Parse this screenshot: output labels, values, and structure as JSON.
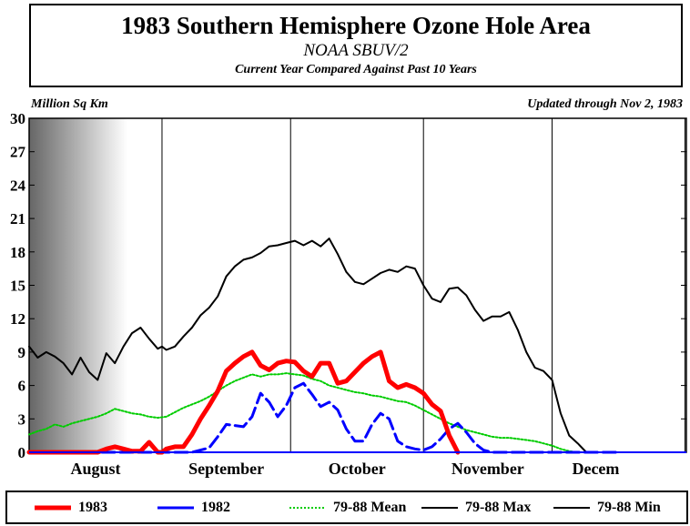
{
  "header": {
    "title": "1983 Southern Hemisphere Ozone Hole Area",
    "subtitle": "NOAA SBUV/2",
    "subtitle2": "Current Year Compared Against Past 10 Years",
    "unit": "Million Sq Km",
    "updated": "Updated through Nov 2, 1983"
  },
  "legend": [
    {
      "label": "1983",
      "color": "#ff0000",
      "style": "solid-thick"
    },
    {
      "label": "1982",
      "color": "#0000ff",
      "style": "dashed"
    },
    {
      "label": "79-88 Mean",
      "color": "#00cc00",
      "style": "dotted"
    },
    {
      "label": "79-88 Max",
      "color": "#000000",
      "style": "solid"
    },
    {
      "label": "79-88 Min",
      "color": "#000000",
      "style": "solid"
    }
  ],
  "chart_data": {
    "type": "line",
    "ylim": [
      0,
      30
    ],
    "yticks": [
      0,
      3,
      6,
      9,
      12,
      15,
      18,
      21,
      24,
      27,
      30
    ],
    "xlim": [
      0,
      138
    ],
    "month_labels": [
      "August",
      "September",
      "October",
      "November",
      "Decem"
    ],
    "grid_x": [
      31,
      61,
      92,
      122,
      153
    ],
    "series": [
      {
        "name": "79-88 Max",
        "color": "#000000",
        "width": 2,
        "x": [
          0,
          2,
          4,
          6,
          8,
          10,
          12,
          14,
          16,
          18,
          20,
          22,
          24,
          26,
          28,
          30,
          31,
          32,
          34,
          36,
          38,
          40,
          42,
          44,
          46,
          48,
          50,
          52,
          54,
          56,
          58,
          60,
          62,
          64,
          66,
          68,
          70,
          72,
          74,
          76,
          78,
          80,
          82,
          84,
          86,
          88,
          90,
          92,
          94,
          96,
          98,
          100,
          102,
          104,
          106,
          108,
          110,
          112,
          114,
          116,
          118,
          120,
          122,
          124,
          126,
          128,
          130,
          132,
          134,
          136,
          138
        ],
        "y": [
          9.5,
          8.5,
          9,
          8.6,
          8,
          7,
          8.5,
          7.2,
          6.5,
          8.9,
          8.0,
          9.5,
          10.7,
          11.2,
          10.2,
          9.3,
          9.5,
          9.2,
          9.5,
          10.4,
          11.2,
          12.3,
          13.0,
          14.0,
          15.8,
          16.7,
          17.3,
          17.5,
          17.9,
          18.5,
          18.6,
          18.8,
          19.0,
          18.6,
          19.0,
          18.5,
          19.2,
          17.8,
          16.2,
          15.3,
          15.1,
          15.6,
          16.1,
          16.4,
          16.2,
          16.7,
          16.5,
          15.0,
          13.8,
          13.5,
          14.7,
          14.8,
          14.1,
          12.8,
          11.8,
          12.2,
          12.2,
          12.6,
          11.0,
          9.0,
          7.6,
          7.3,
          6.5,
          3.5,
          1.5,
          0.8,
          0,
          0,
          0,
          0,
          0
        ]
      },
      {
        "name": "79-88 Mean",
        "color": "#00cc00",
        "width": 2,
        "dash": "2,2",
        "x": [
          0,
          2,
          4,
          6,
          8,
          10,
          12,
          14,
          16,
          18,
          20,
          22,
          24,
          26,
          28,
          30,
          32,
          34,
          36,
          38,
          40,
          42,
          44,
          46,
          48,
          50,
          52,
          54,
          56,
          58,
          60,
          62,
          64,
          66,
          68,
          70,
          72,
          74,
          76,
          78,
          80,
          82,
          84,
          86,
          88,
          90,
          92,
          94,
          96,
          98,
          100,
          102,
          104,
          106,
          108,
          110,
          112,
          114,
          116,
          118,
          120,
          122,
          124,
          126,
          128,
          130,
          132,
          134,
          136,
          138
        ],
        "y": [
          1.6,
          1.9,
          2.1,
          2.5,
          2.3,
          2.6,
          2.8,
          3.0,
          3.2,
          3.5,
          3.9,
          3.7,
          3.5,
          3.4,
          3.2,
          3.1,
          3.2,
          3.6,
          4.0,
          4.3,
          4.6,
          5.0,
          5.5,
          6.0,
          6.4,
          6.7,
          7.0,
          6.8,
          7.0,
          7.0,
          7.1,
          7.0,
          6.9,
          6.6,
          6.4,
          6.0,
          5.8,
          5.6,
          5.4,
          5.3,
          5.1,
          5.0,
          4.8,
          4.6,
          4.5,
          4.2,
          3.8,
          3.4,
          3.0,
          2.6,
          2.3,
          2.0,
          1.8,
          1.6,
          1.4,
          1.3,
          1.3,
          1.2,
          1.1,
          1.0,
          0.8,
          0.6,
          0.3,
          0.1,
          0,
          0,
          0,
          0,
          0,
          0
        ]
      },
      {
        "name": "1982",
        "color": "#0000ff",
        "width": 3,
        "dash": "14,6",
        "x": [
          0,
          20,
          26,
          28,
          32,
          34,
          36,
          38,
          40,
          42,
          44,
          46,
          48,
          50,
          52,
          54,
          56,
          58,
          60,
          62,
          64,
          66,
          68,
          70,
          72,
          74,
          76,
          78,
          80,
          82,
          84,
          86,
          88,
          90,
          92,
          94,
          96,
          98,
          100,
          102,
          104,
          106,
          108,
          110,
          112,
          114,
          116,
          118,
          120,
          122,
          124,
          126,
          128,
          130,
          132,
          134,
          136,
          138
        ],
        "y": [
          0,
          0,
          0,
          0,
          0,
          0,
          0,
          0,
          0.2,
          0.4,
          1.4,
          2.5,
          2.4,
          2.3,
          3.2,
          5.3,
          4.5,
          3.2,
          4.2,
          5.8,
          6.2,
          5.2,
          4.1,
          4.5,
          3.8,
          2.1,
          1.0,
          1.0,
          2.5,
          3.5,
          3.0,
          1.0,
          0.5,
          0.3,
          0.2,
          0.5,
          1.2,
          2.1,
          2.6,
          1.8,
          0.8,
          0.2,
          0,
          0,
          0,
          0,
          0,
          0,
          0,
          0,
          0,
          0,
          0,
          0,
          0,
          0,
          0,
          0
        ]
      },
      {
        "name": "1983",
        "color": "#ff0000",
        "width": 5,
        "x": [
          0,
          4,
          8,
          12,
          16,
          18,
          20,
          22,
          24,
          26,
          28,
          30,
          31,
          32,
          34,
          36,
          38,
          40,
          42,
          44,
          46,
          48,
          50,
          52,
          54,
          56,
          58,
          60,
          62,
          64,
          66,
          68,
          70,
          72,
          74,
          76,
          78,
          80,
          82,
          84,
          86,
          88,
          90,
          92,
          94,
          96,
          98,
          100
        ],
        "y": [
          0,
          0,
          0,
          0,
          0,
          0.3,
          0.5,
          0.3,
          0.1,
          0.1,
          0.9,
          0,
          0,
          0.3,
          0.5,
          0.5,
          1.6,
          3.0,
          4.2,
          5.5,
          7.3,
          8.0,
          8.6,
          9.0,
          7.8,
          7.4,
          8.0,
          8.2,
          8.1,
          7.3,
          6.8,
          8.0,
          8.0,
          6.2,
          6.4,
          7.2,
          8.0,
          8.6,
          9.0,
          6.4,
          5.8,
          6.1,
          5.8,
          5.3,
          4.3,
          3.7,
          1.5,
          0
        ]
      }
    ]
  }
}
